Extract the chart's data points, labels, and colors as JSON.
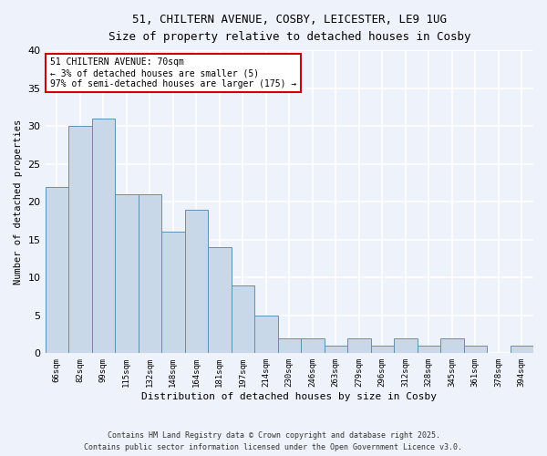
{
  "title_line1": "51, CHILTERN AVENUE, COSBY, LEICESTER, LE9 1UG",
  "title_line2": "Size of property relative to detached houses in Cosby",
  "xlabel": "Distribution of detached houses by size in Cosby",
  "ylabel": "Number of detached properties",
  "categories": [
    "66sqm",
    "82sqm",
    "99sqm",
    "115sqm",
    "132sqm",
    "148sqm",
    "164sqm",
    "181sqm",
    "197sqm",
    "214sqm",
    "230sqm",
    "246sqm",
    "263sqm",
    "279sqm",
    "296sqm",
    "312sqm",
    "328sqm",
    "345sqm",
    "361sqm",
    "378sqm",
    "394sqm"
  ],
  "values": [
    22,
    30,
    31,
    21,
    21,
    16,
    19,
    14,
    9,
    5,
    2,
    2,
    1,
    2,
    1,
    2,
    1,
    2,
    1,
    0,
    1
  ],
  "bar_color": "#c8d8e8",
  "bar_edge_color": "#6090b0",
  "ylim": [
    0,
    40
  ],
  "yticks": [
    0,
    5,
    10,
    15,
    20,
    25,
    30,
    35,
    40
  ],
  "annotation_text": "51 CHILTERN AVENUE: 70sqm\n← 3% of detached houses are smaller (5)\n97% of semi-detached houses are larger (175) →",
  "annotation_box_color": "#ffffff",
  "annotation_box_edge": "#cc0000",
  "footer_line1": "Contains HM Land Registry data © Crown copyright and database right 2025.",
  "footer_line2": "Contains public sector information licensed under the Open Government Licence v3.0.",
  "background_color": "#eef2fb",
  "grid_color": "#ffffff"
}
